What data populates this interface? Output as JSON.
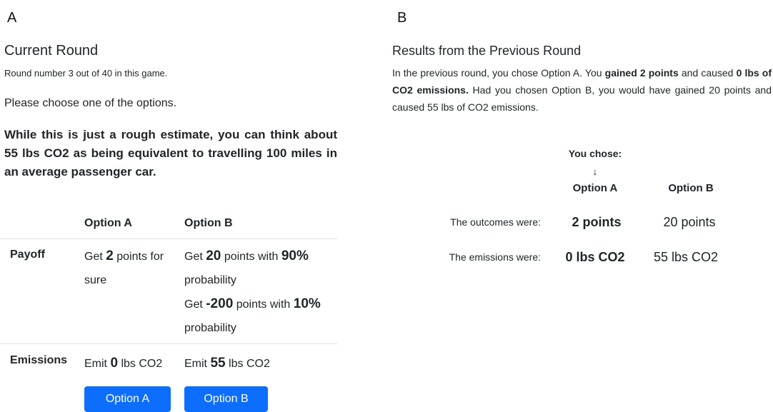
{
  "panel_a": {
    "label": "A",
    "title": "Current Round",
    "round_info": "Round number 3 out of 40 in this game.",
    "instruction": "Please choose one of the options.",
    "note": "While this is just a rough estimate, you can think about 55 lbs CO2 as being equivalent to travelling 100 miles in an average passenger car.",
    "table": {
      "headers": [
        "Option A",
        "Option B"
      ],
      "rows": [
        {
          "label": "Payoff",
          "option_a": [
            [
              {
                "text": "Get ",
                "emphasis": false
              },
              {
                "text": "2",
                "emphasis": true
              },
              {
                "text": " points for sure",
                "emphasis": false
              }
            ]
          ],
          "option_b": [
            [
              {
                "text": "Get ",
                "emphasis": false
              },
              {
                "text": "20",
                "emphasis": true
              },
              {
                "text": " points with ",
                "emphasis": false
              },
              {
                "text": "90%",
                "emphasis": true
              },
              {
                "text": " probability",
                "emphasis": false
              }
            ],
            [
              {
                "text": "Get ",
                "emphasis": false
              },
              {
                "text": "-200",
                "emphasis": true
              },
              {
                "text": " points with ",
                "emphasis": false
              },
              {
                "text": "10%",
                "emphasis": true
              },
              {
                "text": " probability",
                "emphasis": false
              }
            ]
          ]
        },
        {
          "label": "Emissions",
          "option_a": [
            [
              {
                "text": "Emit ",
                "emphasis": false
              },
              {
                "text": "0",
                "emphasis": true
              },
              {
                "text": " lbs CO2",
                "emphasis": false
              }
            ]
          ],
          "option_b": [
            [
              {
                "text": "Emit ",
                "emphasis": false
              },
              {
                "text": "55",
                "emphasis": true
              },
              {
                "text": " lbs CO2",
                "emphasis": false
              }
            ]
          ]
        }
      ]
    },
    "buttons": [
      "Option A",
      "Option B"
    ]
  },
  "panel_b": {
    "label": "B",
    "title": "Results from the Previous Round",
    "paragraph": [
      {
        "text": "In the previous round, you chose Option A. You ",
        "emphasis": false
      },
      {
        "text": "gained 2 points",
        "emphasis": true
      },
      {
        "text": " and caused ",
        "emphasis": false
      },
      {
        "text": "0 lbs of CO2 emissions.",
        "emphasis": true
      },
      {
        "text": " Had you chosen Option B, you would have gained 20 points and caused 55 lbs of CO2 emissions.",
        "emphasis": false
      }
    ],
    "table": {
      "chosen_marker": "You chose:",
      "arrow": "↓",
      "headers": [
        "Option A",
        "Option B"
      ],
      "rows": [
        {
          "label": "The outcomes were:",
          "option_a": "2 points",
          "option_b": "20 points"
        },
        {
          "label": "The emissions were:",
          "option_a": "0 lbs CO2",
          "option_b": "55 lbs CO2"
        }
      ]
    }
  }
}
